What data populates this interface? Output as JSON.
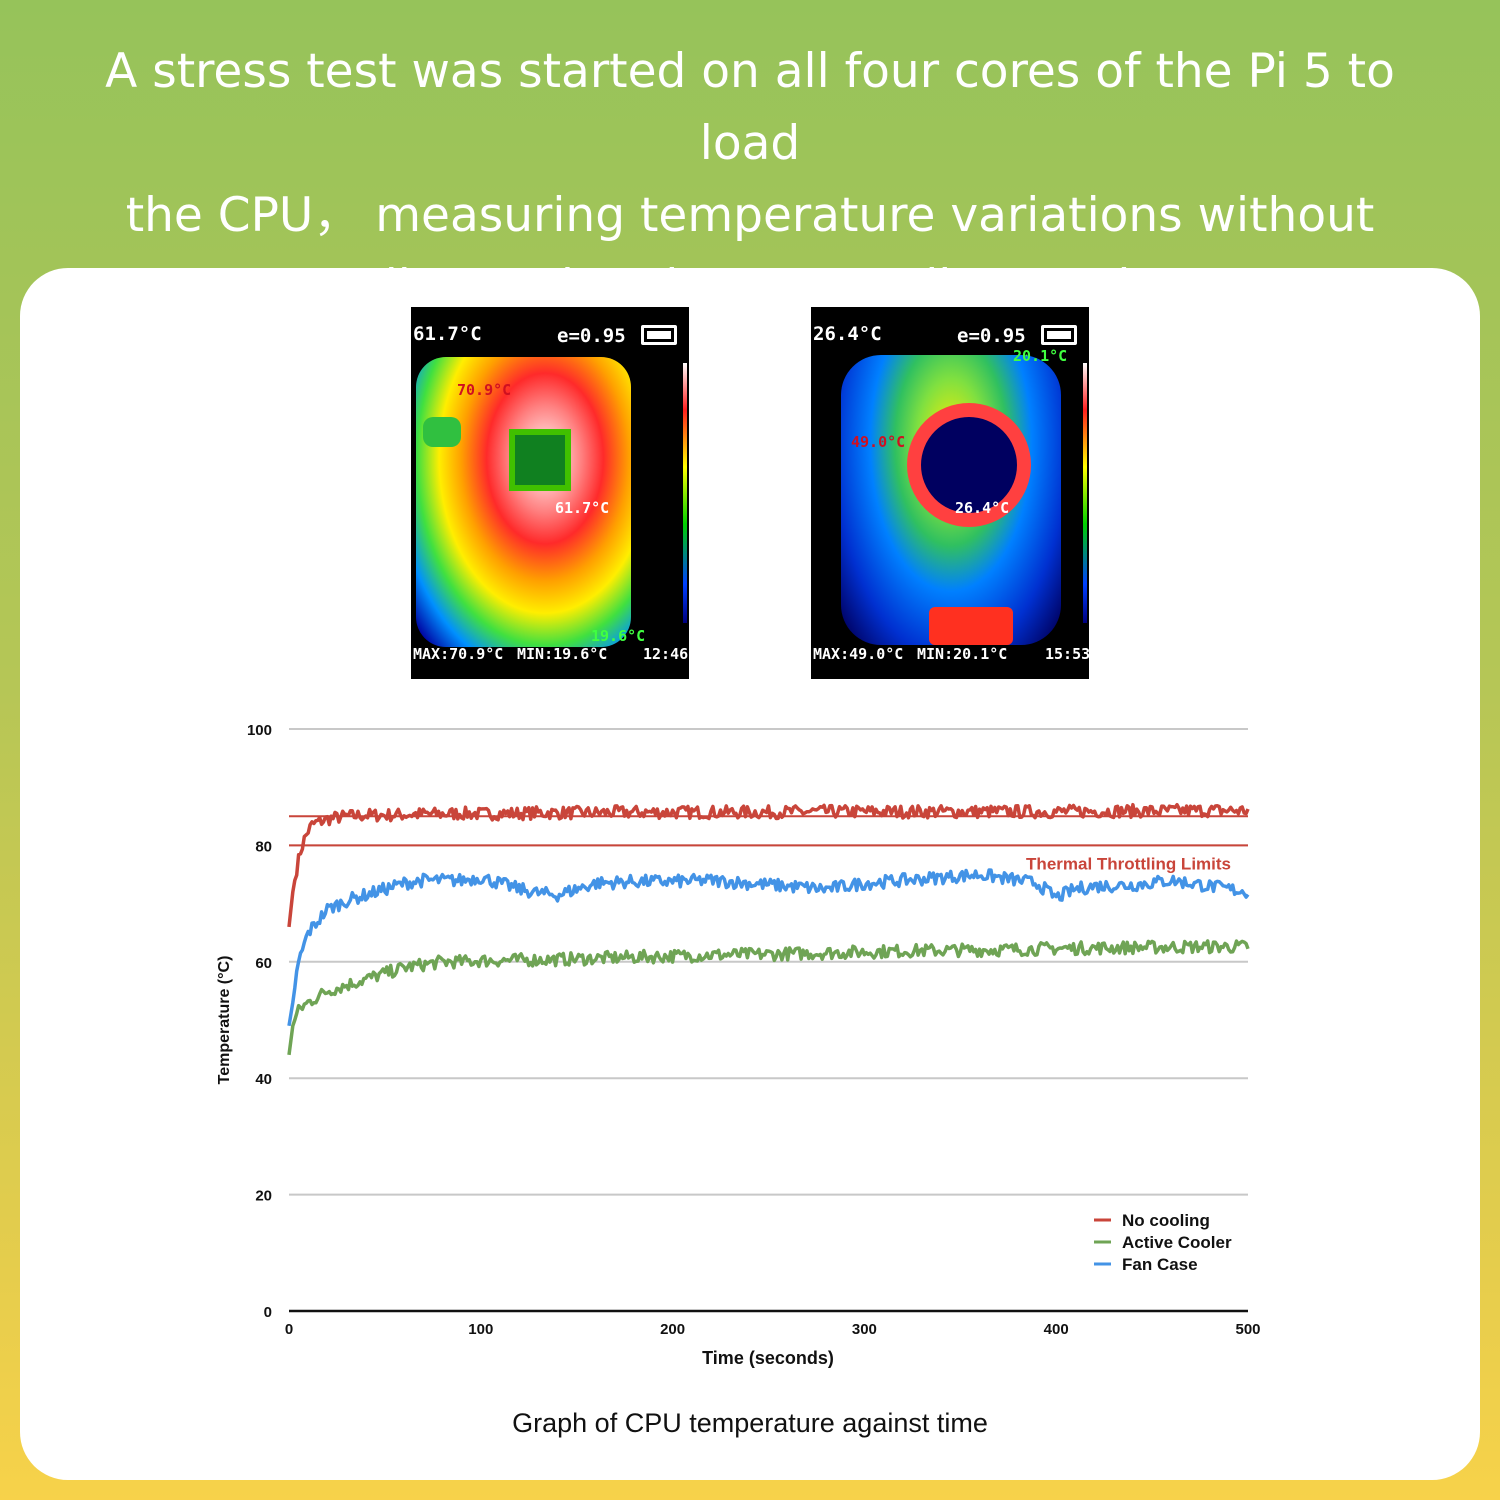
{
  "headline": {
    "line1": "A  stress test was started on all four cores of the Pi 5 to load",
    "line2": "the CPU， measuring temperature variations without",
    "line3": "cooling and under two cooling modes."
  },
  "thermal_images": [
    {
      "reading": "61.7°C",
      "emissivity": "e=0.95",
      "hot_marker": "70.9°C",
      "center_marker": "61.7°C",
      "cold_marker": "19.6°C",
      "max": "MAX:70.9°C",
      "min": "MIN:19.6°C",
      "time": "12:46"
    },
    {
      "reading": "26.4°C",
      "emissivity": "e=0.95",
      "hot_marker": "49.0°C",
      "center_marker": "26.4°C",
      "cold_marker": "20.1°C",
      "max": "MAX:49.0°C",
      "min": "MIN:20.1°C",
      "time": "15:53"
    }
  ],
  "chart_data": {
    "type": "line",
    "xlabel": "Time (seconds)",
    "ylabel": "Temperature (°C)",
    "xlim": [
      0,
      500
    ],
    "ylim": [
      0,
      100
    ],
    "xticks": [
      "0",
      "100",
      "200",
      "300",
      "400",
      "500"
    ],
    "yticks": [
      "0",
      "20",
      "40",
      "60",
      "80",
      "100"
    ],
    "grid": true,
    "legend_position": "bottom-right",
    "reference_lines": [
      {
        "y": 85,
        "color": "#c9453a"
      },
      {
        "y": 80,
        "color": "#c9453a",
        "label": "Thermal Throttling Limits"
      }
    ],
    "series": [
      {
        "name": "No cooling",
        "color": "#c9453a",
        "x": [
          0,
          2,
          4,
          6,
          8,
          10,
          12,
          15,
          20,
          25,
          30,
          40,
          50,
          60,
          70,
          80,
          90,
          100,
          110,
          120,
          130,
          140,
          150,
          160,
          170,
          180,
          190,
          200,
          225,
          250,
          275,
          300,
          325,
          350,
          375,
          400,
          425,
          450,
          475,
          500
        ],
        "y": [
          66,
          72,
          76,
          79,
          81,
          82.5,
          83.5,
          84,
          84.5,
          84.8,
          85,
          85.2,
          85.2,
          85.3,
          85.4,
          85.4,
          85.5,
          85.4,
          85.5,
          85.5,
          85.6,
          85.6,
          85.6,
          85.6,
          85.7,
          85.7,
          85.7,
          85.7,
          85.7,
          85.7,
          85.8,
          85.8,
          85.8,
          85.8,
          85.8,
          85.8,
          85.9,
          85.9,
          86.0,
          86.0
        ]
      },
      {
        "name": "Active Cooler",
        "color": "#6fa455",
        "x": [
          0,
          2,
          4,
          6,
          10,
          15,
          20,
          30,
          40,
          50,
          60,
          70,
          80,
          90,
          100,
          120,
          140,
          160,
          180,
          200,
          225,
          250,
          275,
          300,
          325,
          350,
          375,
          400,
          425,
          450,
          475,
          500
        ],
        "y": [
          44,
          49,
          51,
          52,
          53,
          54,
          55,
          56,
          57,
          58,
          59,
          59.5,
          60,
          60,
          60.2,
          60.3,
          60.4,
          60.6,
          60.8,
          61,
          61.2,
          61.3,
          61.5,
          61.7,
          61.9,
          62,
          62.1,
          62.3,
          62.4,
          62.5,
          62.6,
          62.6
        ]
      },
      {
        "name": "Fan Case",
        "color": "#4393e6",
        "x": [
          0,
          2,
          4,
          6,
          8,
          10,
          15,
          20,
          30,
          40,
          50,
          60,
          70,
          80,
          90,
          100,
          110,
          120,
          130,
          140,
          150,
          160,
          180,
          200,
          220,
          240,
          260,
          280,
          300,
          320,
          340,
          360,
          380,
          390,
          400,
          410,
          420,
          440,
          460,
          480,
          500
        ],
        "y": [
          49,
          53,
          58,
          61,
          63,
          65,
          67,
          69,
          70.5,
          71.5,
          72.5,
          73.5,
          74,
          74,
          74,
          74.5,
          73.5,
          72.5,
          71.8,
          71.5,
          72.5,
          73.5,
          73.8,
          73.8,
          74,
          73.5,
          73,
          72.5,
          73.5,
          74,
          74.5,
          75,
          74,
          73.5,
          71,
          72.5,
          73,
          73.2,
          74,
          73,
          72
        ]
      }
    ]
  },
  "caption": "Graph of CPU temperature against time"
}
